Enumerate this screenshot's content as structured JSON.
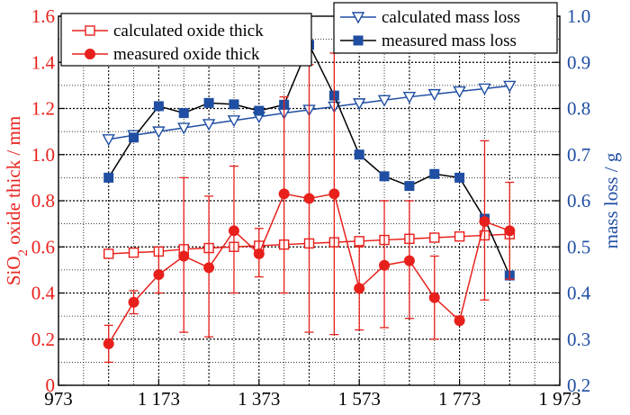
{
  "chart_data": {
    "type": "line",
    "x": [
      1073,
      1123,
      1173,
      1223,
      1273,
      1323,
      1373,
      1423,
      1473,
      1523,
      1573,
      1623,
      1673,
      1723,
      1773,
      1823,
      1873
    ],
    "xlim": [
      973,
      1973
    ],
    "x_ticks": [
      973,
      1173,
      1373,
      1573,
      1773,
      1973
    ],
    "x_tick_labels": [
      "973",
      "1 173",
      "1 373",
      "1 573",
      "1 773",
      "1 973"
    ],
    "left_axis": {
      "label_main": "SiO",
      "label_sub": "2",
      "label_rest": " oxide thick / mm",
      "ylim": [
        0,
        1.6
      ],
      "ticks": [
        0,
        0.2,
        0.4,
        0.6,
        0.8,
        1.0,
        1.2,
        1.4,
        1.6
      ],
      "tick_labels": [
        "0",
        "0.2",
        "0.4",
        "0.6",
        "0.8",
        "1.0",
        "1.2",
        "1.4",
        "1.6"
      ],
      "color": "#e8201c"
    },
    "right_axis": {
      "label": "mass loss / g",
      "ylim": [
        0.2,
        1.0
      ],
      "ticks": [
        0.2,
        0.3,
        0.4,
        0.5,
        0.6,
        0.7,
        0.8,
        0.9,
        1.0
      ],
      "tick_labels": [
        "0.2",
        "0.3",
        "0.4",
        "0.5",
        "0.6",
        "0.7",
        "0.8",
        "0.9",
        "1.0"
      ],
      "color": "#1f4ea3"
    },
    "series": [
      {
        "name": "calculated oxide thick",
        "axis": "left",
        "marker": "open-square",
        "color": "#e8201c",
        "values": [
          0.57,
          0.575,
          0.58,
          0.59,
          0.595,
          0.6,
          0.605,
          0.61,
          0.615,
          0.62,
          0.625,
          0.63,
          0.635,
          0.64,
          0.645,
          0.65,
          0.655
        ]
      },
      {
        "name": "measured oxide thick",
        "axis": "left",
        "marker": "filled-circle",
        "color": "#e8201c",
        "values": [
          0.18,
          0.36,
          0.48,
          0.56,
          0.51,
          0.67,
          0.57,
          0.83,
          0.81,
          0.83,
          0.42,
          0.52,
          0.54,
          0.38,
          0.28,
          0.71,
          0.67
        ],
        "err_low": [
          0.1,
          0.31,
          0.4,
          0.23,
          0.21,
          0.4,
          0.47,
          0.4,
          0.23,
          0.22,
          0.24,
          0.25,
          0.29,
          0.2,
          0.27,
          0.37,
          0.46
        ],
        "err_high": [
          0.26,
          0.41,
          0.6,
          0.9,
          0.82,
          0.95,
          0.68,
          1.25,
          1.39,
          1.44,
          0.6,
          0.8,
          0.8,
          0.56,
          0.3,
          1.06,
          0.88
        ]
      },
      {
        "name": "calculated mass loss",
        "axis": "right",
        "marker": "open-triangle-down",
        "color": "#1f4ea3",
        "values": [
          0.733,
          0.742,
          0.75,
          0.758,
          0.766,
          0.774,
          0.782,
          0.79,
          0.797,
          0.804,
          0.811,
          0.818,
          0.825,
          0.831,
          0.837,
          0.843,
          0.849
        ]
      },
      {
        "name": "measured mass loss",
        "axis": "right",
        "marker": "filled-square",
        "color": "#1f4ea3",
        "values": [
          0.65,
          0.737,
          0.805,
          0.79,
          0.812,
          0.809,
          0.795,
          0.808,
          0.938,
          0.828,
          0.7,
          0.653,
          0.632,
          0.658,
          0.65,
          0.561,
          0.438
        ]
      }
    ],
    "legend_left": {
      "items": [
        "calculated oxide thick",
        "measured oxide thick"
      ],
      "position": "top-left"
    },
    "legend_right": {
      "items": [
        "calculated mass loss",
        "measured mass loss"
      ],
      "position": "top-right"
    }
  }
}
